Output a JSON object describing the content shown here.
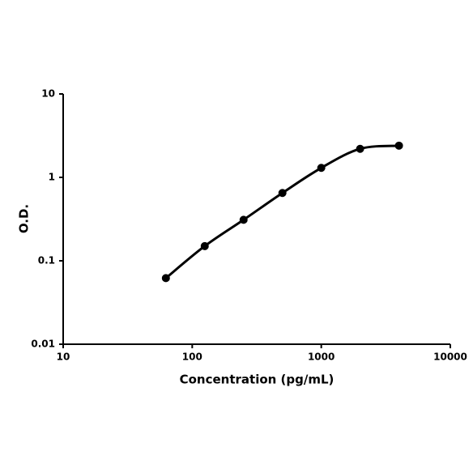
{
  "chart_data": {
    "type": "line",
    "x_label": "Concentration (pg/mL)",
    "y_label": "O.D.",
    "x": [
      62.5,
      125,
      250,
      500,
      1000,
      2000,
      4000
    ],
    "series": [
      {
        "color": "#000000",
        "values": [
          0.062,
          0.15,
          0.31,
          0.65,
          1.3,
          2.2,
          2.4
        ]
      }
    ],
    "xscale": "log",
    "yscale": "log",
    "xlim": [
      10,
      10000
    ],
    "ylim": [
      0.01,
      10
    ],
    "xticks": [
      10,
      100,
      1000,
      10000
    ],
    "yticks": [
      0.01,
      0.1,
      1,
      10
    ],
    "grid": false,
    "smooth": true,
    "markers": true
  }
}
